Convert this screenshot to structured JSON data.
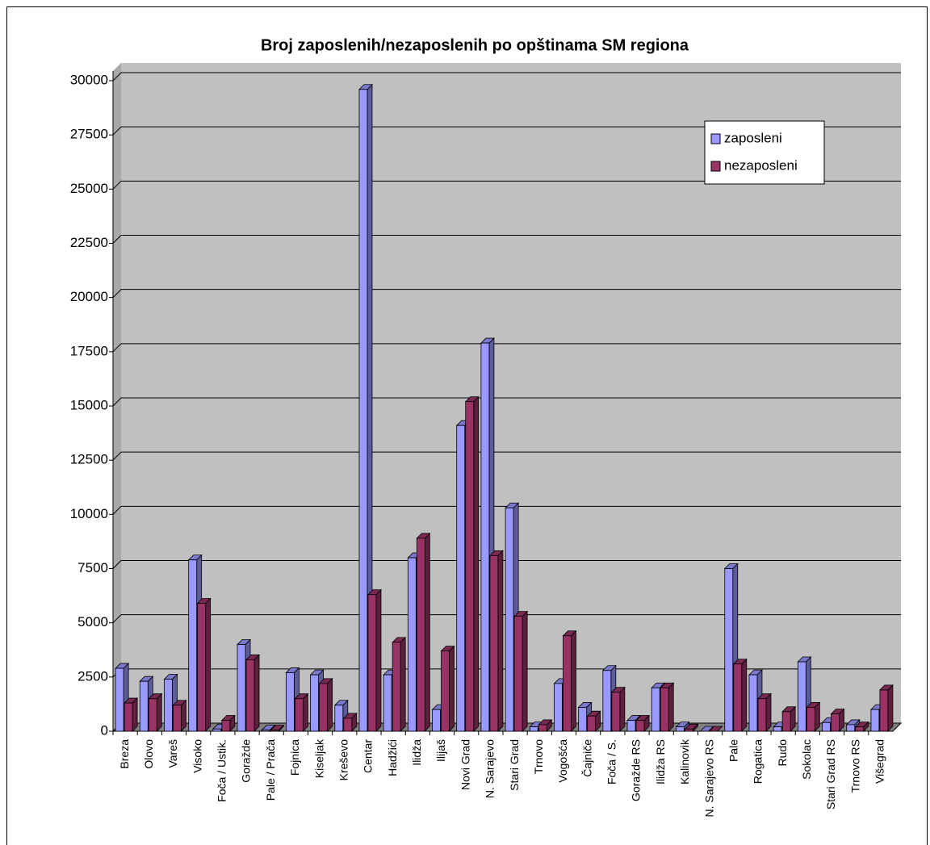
{
  "chart_data": {
    "type": "bar3d",
    "title": "Broj zaposlenih/nezaposlenih po opštinama SM regiona",
    "categories": [
      "Breza",
      "Olovo",
      "Vareš",
      "Visoko",
      "Foča / Ustik.",
      "Goražde",
      "Pale / Prača",
      "Fojnica",
      "Kiseljak",
      "Kreševo",
      "Centar",
      "Hadžići",
      "Ilidža",
      "Ilijaš",
      "Novi Grad",
      "N. Sarajevo",
      "Stari Grad",
      "Trnovo",
      "Vogošća",
      "Čajniče",
      "Foča / S.",
      "Goražde RS",
      "Ilidža RS",
      "Kalinovik",
      "N. Sarajevo RS",
      "Pale",
      "Rogatica",
      "Rudo",
      "Sokolac",
      "Stari Grad RS",
      "Trnovo RS",
      "Višegrad"
    ],
    "series": [
      {
        "name": "zaposleni",
        "color": "#9999ff",
        "values": [
          2900,
          2300,
          2400,
          7900,
          100,
          4000,
          50,
          2700,
          2600,
          1200,
          29600,
          2600,
          8000,
          1000,
          14100,
          17900,
          10300,
          200,
          2200,
          1100,
          2800,
          500,
          2000,
          200,
          0,
          7500,
          2600,
          200,
          3200,
          400,
          300,
          1000
        ]
      },
      {
        "name": "nezaposleni",
        "color": "#993366",
        "values": [
          1300,
          1500,
          1200,
          5900,
          500,
          3300,
          50,
          1500,
          2200,
          600,
          6300,
          4100,
          8900,
          3700,
          15200,
          8100,
          5300,
          300,
          4400,
          700,
          1800,
          500,
          2000,
          100,
          0,
          3100,
          1500,
          900,
          1100,
          800,
          200,
          1900
        ]
      }
    ],
    "ylim": [
      0,
      30000
    ],
    "yticks": [
      0,
      2500,
      5000,
      7500,
      10000,
      12500,
      15000,
      17500,
      20000,
      22500,
      25000,
      27500,
      30000
    ],
    "grid": true,
    "legend": "upper right"
  }
}
